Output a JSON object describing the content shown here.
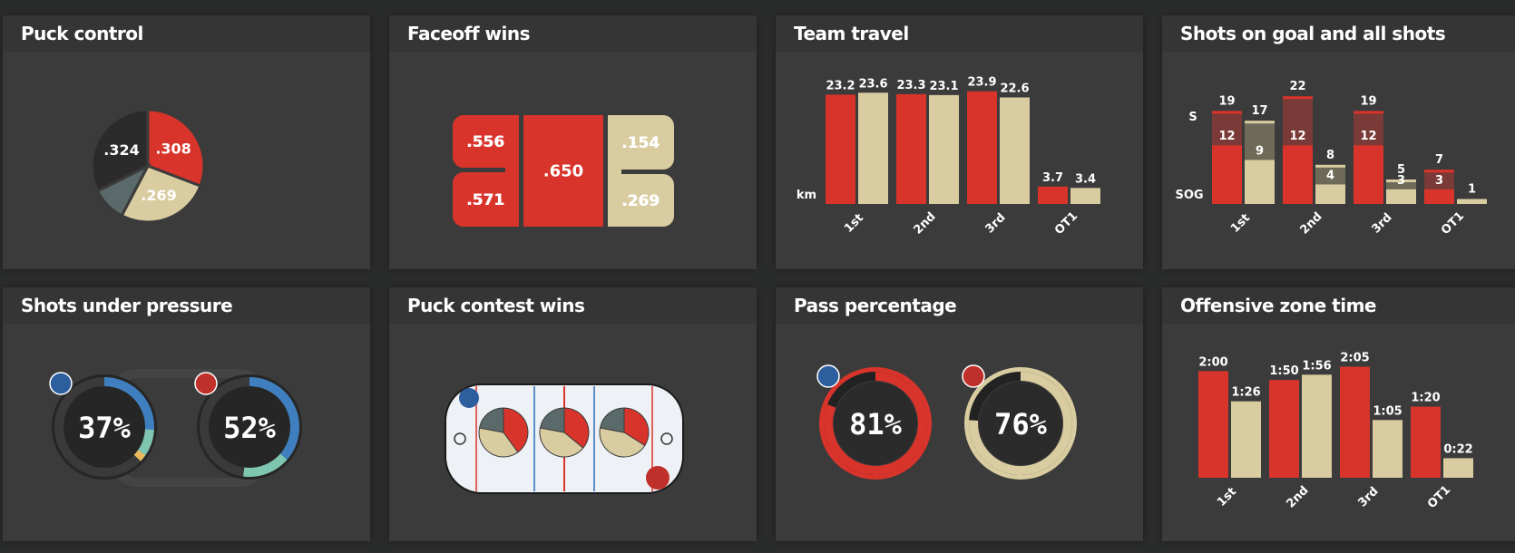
{
  "colors": {
    "home": "#d9342b",
    "away": "#d8cca0",
    "dark": "#2b2b2b",
    "slate": "#5a6a6a",
    "blue": "#3f7fbf",
    "teal": "#7fc6b0",
    "gold": "#e8b85a"
  },
  "panels": {
    "puck_control": {
      "title": "Puck control"
    },
    "faceoff_wins": {
      "title": "Faceoff wins"
    },
    "team_travel": {
      "title": "Team travel",
      "unit": "km"
    },
    "shots": {
      "title": "Shots on goal and all shots",
      "s_label": "S",
      "sog_label": "SOG"
    },
    "shots_pressure": {
      "title": "Shots under pressure"
    },
    "puck_contest": {
      "title": "Puck contest wins"
    },
    "pass_pct": {
      "title": "Pass percentage"
    },
    "oz_time": {
      "title": "Offensive zone time"
    }
  },
  "chart_data": [
    {
      "id": "puck_control",
      "type": "pie",
      "slices": [
        {
          "label": ".308",
          "value": 0.308,
          "color": "#d9342b"
        },
        {
          "label": ".269",
          "value": 0.269,
          "color": "#d8cca0"
        },
        {
          "label": "",
          "value": 0.099,
          "color": "#5a6a6a"
        },
        {
          "label": ".324",
          "value": 0.324,
          "color": "#2b2b2b"
        }
      ]
    },
    {
      "id": "faceoff_wins",
      "type": "table",
      "cells": [
        {
          "label": ".556",
          "team": "home"
        },
        {
          "label": ".571",
          "team": "home"
        },
        {
          "label": ".650",
          "team": "home"
        },
        {
          "label": ".154",
          "team": "away"
        },
        {
          "label": ".269",
          "team": "away"
        }
      ]
    },
    {
      "id": "team_travel",
      "type": "bar",
      "categories": [
        "1st",
        "2nd",
        "3rd",
        "OT1"
      ],
      "series": [
        {
          "values": [
            23.2,
            23.3,
            23.9,
            3.7
          ]
        },
        {
          "values": [
            23.6,
            23.1,
            22.6,
            3.4
          ]
        }
      ],
      "value_labels": [
        [
          "23.2",
          "23.3",
          "23.9",
          "3.7"
        ],
        [
          "23.6",
          "23.1",
          "22.6",
          "3.4"
        ]
      ]
    },
    {
      "id": "shots",
      "type": "bar",
      "categories": [
        "1st",
        "2nd",
        "3rd",
        "OT1"
      ],
      "series": [
        {
          "shots": [
            19,
            22,
            19,
            7
          ],
          "sog": [
            12,
            12,
            12,
            3
          ]
        },
        {
          "shots": [
            17,
            8,
            5,
            1
          ],
          "sog": [
            9,
            4,
            3,
            1
          ]
        }
      ]
    },
    {
      "id": "shots_pressure",
      "type": "pie",
      "rings": [
        {
          "label": "37%",
          "value": 0.37
        },
        {
          "label": "52%",
          "value": 0.52
        }
      ]
    },
    {
      "id": "puck_contest",
      "type": "pie",
      "pies": [
        {
          "home": 0.4,
          "away": 0.38,
          "other": 0.22
        },
        {
          "home": 0.36,
          "away": 0.42,
          "other": 0.22
        },
        {
          "home": 0.34,
          "away": 0.44,
          "other": 0.22
        }
      ]
    },
    {
      "id": "pass_pct",
      "type": "pie",
      "rings": [
        {
          "label": "81%",
          "value": 0.81,
          "color": "#d9342b"
        },
        {
          "label": "76%",
          "value": 0.76,
          "color": "#d8cca0"
        }
      ]
    },
    {
      "id": "oz_time",
      "type": "bar",
      "categories": [
        "1st",
        "2nd",
        "3rd",
        "OT1"
      ],
      "series": [
        {
          "values": [
            120,
            110,
            125,
            80
          ]
        },
        {
          "values": [
            86,
            116,
            65,
            22
          ]
        }
      ],
      "value_labels": [
        [
          "2:00",
          "1:50",
          "2:05",
          "1:20"
        ],
        [
          "1:26",
          "1:56",
          "1:05",
          "0:22"
        ]
      ]
    }
  ]
}
